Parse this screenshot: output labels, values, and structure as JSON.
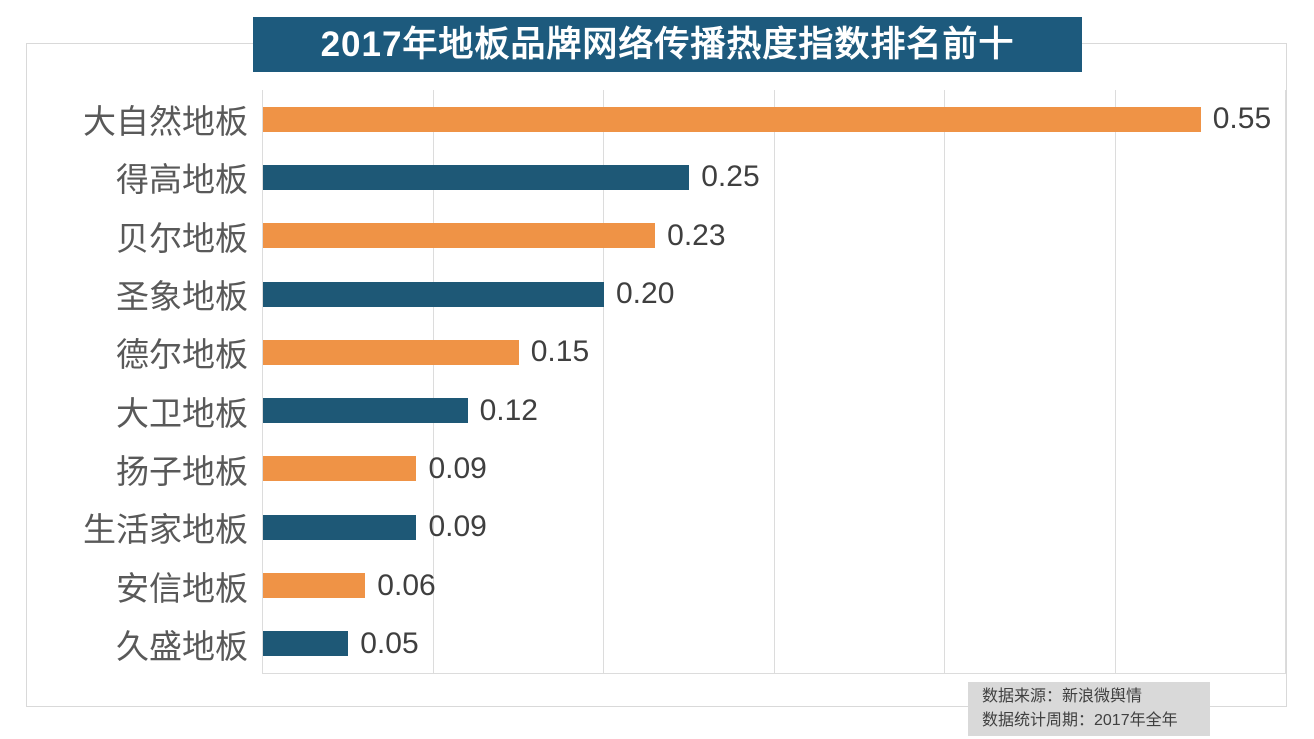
{
  "title": "2017年地板品牌网络传播热度指数排名前十",
  "source": {
    "line1": "数据来源：新浪微舆情",
    "line2": "数据统计周期：2017年全年"
  },
  "colors": {
    "orange": "#ef9346",
    "teal": "#1e5876",
    "title_bg": "#1d5a7d",
    "title_text": "#ffffff",
    "grid": "#dcdcdc",
    "frame_border": "#d9d9d9",
    "label_text": "#595959",
    "value_text": "#3f3f3f",
    "source_bg": "#d9d9d9",
    "source_text": "#404040"
  },
  "chart_data": {
    "type": "bar",
    "orientation": "horizontal",
    "title": "2017年地板品牌网络传播热度指数排名前十",
    "categories": [
      "大自然地板",
      "得高地板",
      "贝尔地板",
      "圣象地板",
      "德尔地板",
      "大卫地板",
      "扬子地板",
      "生活家地板",
      "安信地板",
      "久盛地板"
    ],
    "values": [
      0.55,
      0.25,
      0.23,
      0.2,
      0.15,
      0.12,
      0.09,
      0.09,
      0.06,
      0.05
    ],
    "value_labels": [
      "0.55",
      "0.25",
      "0.23",
      "0.20",
      "0.15",
      "0.12",
      "0.09",
      "0.09",
      "0.06",
      "0.05"
    ],
    "bar_color_pattern": [
      "#ef9346",
      "#1e5876"
    ],
    "xlabel": "",
    "ylabel": "",
    "xlim": [
      0,
      0.6
    ],
    "grid": true,
    "grid_ticks": [
      0.1,
      0.2,
      0.3,
      0.4,
      0.5,
      0.6
    ],
    "legend": false,
    "source": [
      "数据来源：新浪微舆情",
      "数据统计周期：2017年全年"
    ]
  }
}
